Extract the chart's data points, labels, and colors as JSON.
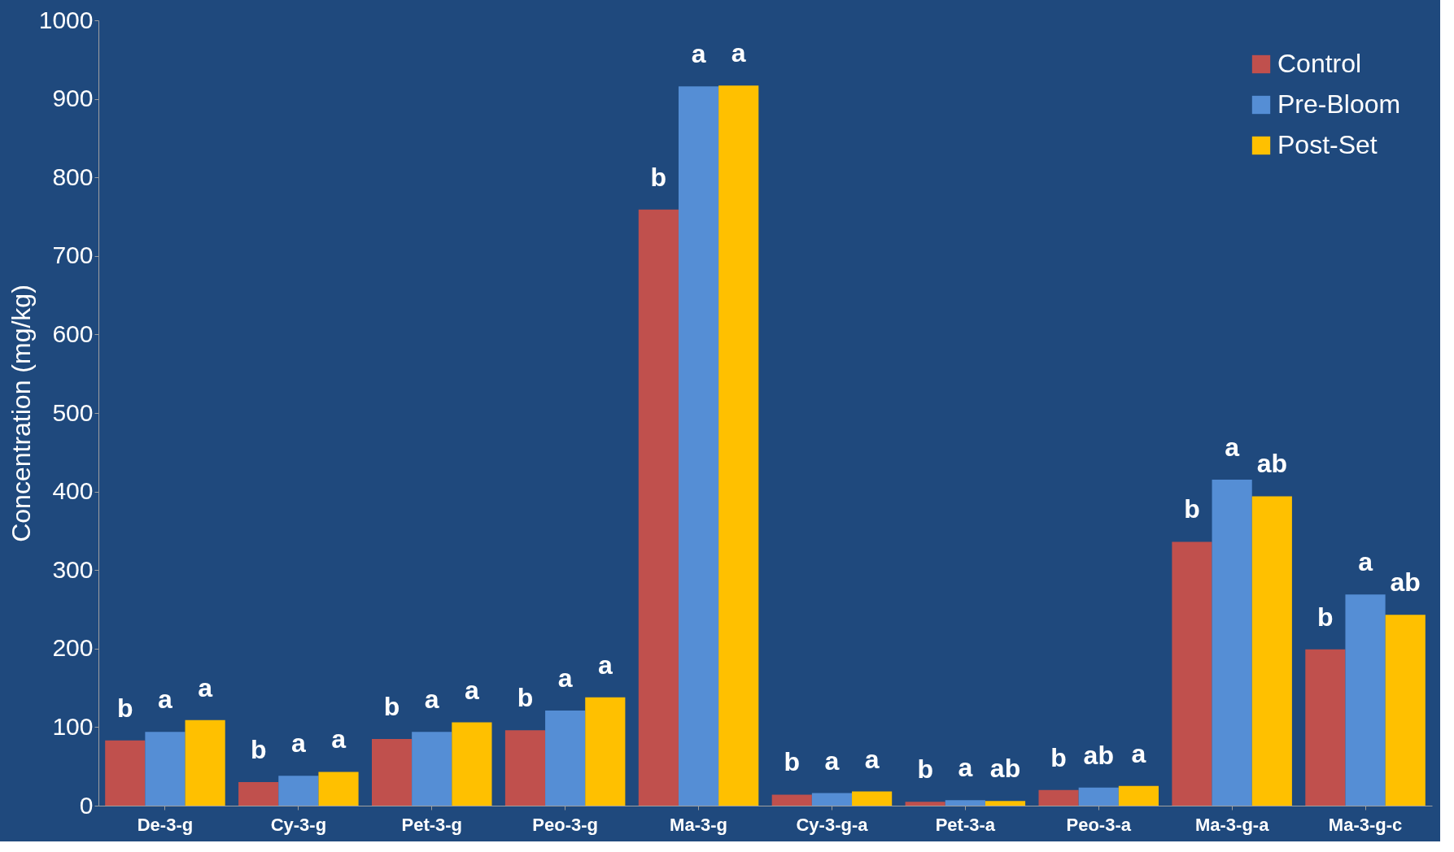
{
  "chart_data": {
    "type": "bar",
    "ylabel": "Concentration (mg/kg)",
    "categories": [
      "De-3-g",
      "Cy-3-g",
      "Pet-3-g",
      "Peo-3-g",
      "Ma-3-g",
      "Cy-3-g-a",
      "Pet-3-a",
      "Peo-3-a",
      "Ma-3-g-a",
      "Ma-3-g-c"
    ],
    "series": [
      {
        "name": "Control",
        "color": "#c0504d",
        "values": [
          83,
          30,
          85,
          96,
          759,
          14,
          5,
          20,
          336,
          199
        ],
        "value_labels": [
          "b",
          "b",
          "b",
          "b",
          "b",
          "b",
          "b",
          "b",
          "b",
          "b"
        ]
      },
      {
        "name": "Pre-Bloom",
        "color": "#558ed5",
        "values": [
          94,
          38,
          94,
          121,
          916,
          16,
          7,
          23,
          415,
          269
        ],
        "value_labels": [
          "a",
          "a",
          "a",
          "a",
          "a",
          "a",
          "a",
          "ab",
          "a",
          "a"
        ]
      },
      {
        "name": "Post-Set",
        "color": "#ffc000",
        "values": [
          109,
          43,
          106,
          138,
          917,
          18,
          6,
          25,
          394,
          243
        ],
        "value_labels": [
          "a",
          "a",
          "a",
          "a",
          "a",
          "a",
          "ab",
          "a",
          "ab",
          "ab"
        ]
      }
    ],
    "ylim": [
      0,
      1000
    ],
    "yticks": [
      0,
      100,
      200,
      300,
      400,
      500,
      600,
      700,
      800,
      900,
      1000
    ],
    "grid": false,
    "legend": "top right"
  }
}
